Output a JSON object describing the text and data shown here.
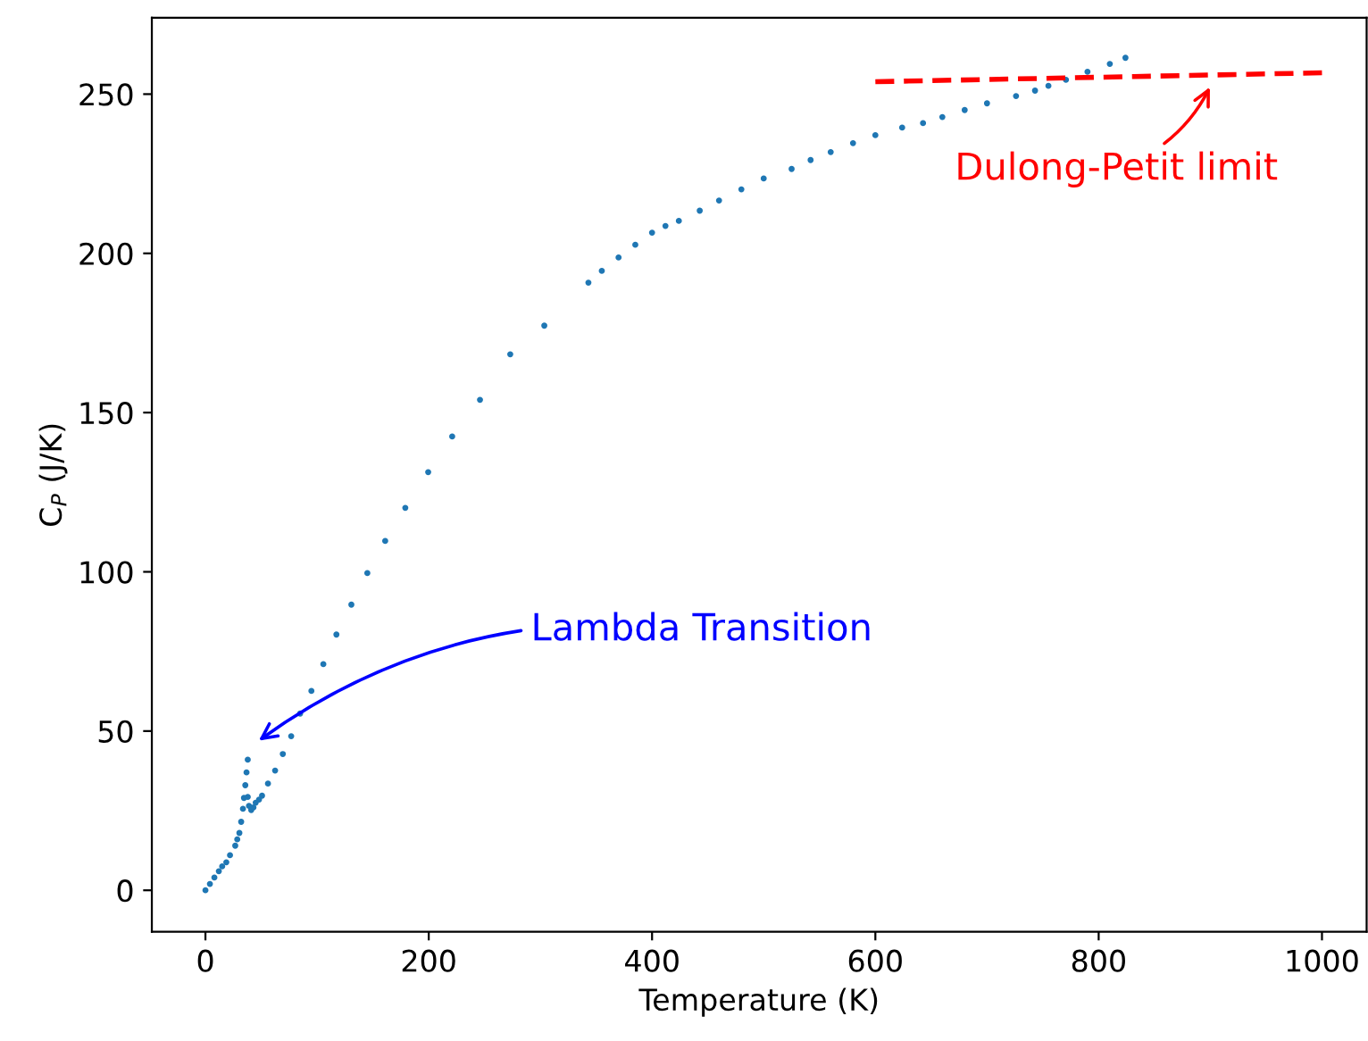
{
  "chart_data": {
    "type": "scatter",
    "xlabel": "Temperature (K)",
    "ylabel": "C$_{P}$ (J/K)",
    "xlim": [
      -48,
      1040
    ],
    "ylim": [
      -13,
      274
    ],
    "xticks": [
      0,
      200,
      400,
      600,
      800,
      1000
    ],
    "yticks": [
      0,
      50,
      100,
      150,
      200,
      250
    ],
    "grid": false,
    "legend": false,
    "marker": "circle",
    "series": [
      {
        "color": "#1f77b4",
        "x": [
          0,
          4,
          8,
          12,
          15,
          18.7,
          22,
          26.7,
          28.5,
          30.4,
          32,
          33.6,
          34.5,
          35.7,
          36.8,
          37.9,
          37.9,
          39,
          41,
          43,
          45,
          48,
          50.7,
          56,
          62.4,
          69.3,
          76.8,
          84.8,
          94.9,
          105.6,
          117.3,
          130.7,
          145,
          161,
          179,
          199.5,
          221,
          245.9,
          273,
          303.5,
          343,
          355,
          370,
          385,
          400,
          412,
          424,
          442.7,
          460,
          480,
          500,
          525,
          542,
          560,
          580,
          600,
          624,
          642.7,
          660,
          680,
          700,
          726,
          743,
          755,
          770.7,
          790,
          810,
          824
        ],
        "values": [
          0,
          2,
          4,
          6,
          7.5,
          8.8,
          11,
          14,
          16,
          18,
          21.5,
          25.6,
          29,
          33,
          37,
          41,
          29.3,
          26.5,
          25.2,
          26,
          27.5,
          28.5,
          29.7,
          33.5,
          37.6,
          42.8,
          48.4,
          55.5,
          62.6,
          71,
          80.3,
          89.7,
          99.6,
          109.7,
          120.1,
          131.3,
          142.5,
          154,
          168.3,
          177.3,
          190.8,
          194.5,
          198.7,
          202.7,
          206.5,
          208.6,
          210.2,
          213.4,
          216.6,
          220.1,
          223.5,
          226.5,
          229.3,
          231.8,
          234.6,
          237.1,
          239.5,
          240.9,
          242.8,
          245,
          247.1,
          249.4,
          251.1,
          252.6,
          254.5,
          257,
          259.5,
          261.4
        ]
      },
      {
        "type": "line",
        "color": "#ff0000",
        "line_style": "dashed",
        "marker": "none",
        "x": [
          600,
          1000
        ],
        "values": [
          253.9,
          256.7
        ]
      }
    ],
    "annotations": [
      "Lambda Transition",
      "Dulong-Petit limit"
    ]
  }
}
